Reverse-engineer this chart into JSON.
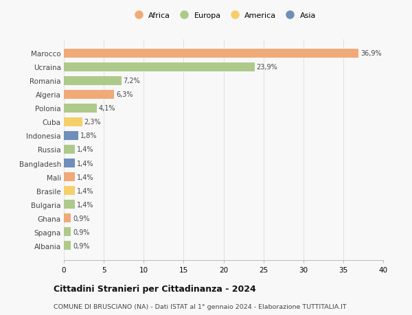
{
  "countries": [
    "Marocco",
    "Ucraina",
    "Romania",
    "Algeria",
    "Polonia",
    "Cuba",
    "Indonesia",
    "Russia",
    "Bangladesh",
    "Mali",
    "Brasile",
    "Bulgaria",
    "Ghana",
    "Spagna",
    "Albania"
  ],
  "values": [
    36.9,
    23.9,
    7.2,
    6.3,
    4.1,
    2.3,
    1.8,
    1.4,
    1.4,
    1.4,
    1.4,
    1.4,
    0.9,
    0.9,
    0.9
  ],
  "labels": [
    "36,9%",
    "23,9%",
    "7,2%",
    "6,3%",
    "4,1%",
    "2,3%",
    "1,8%",
    "1,4%",
    "1,4%",
    "1,4%",
    "1,4%",
    "1,4%",
    "0,9%",
    "0,9%",
    "0,9%"
  ],
  "continents": [
    "Africa",
    "Europa",
    "Europa",
    "Africa",
    "Europa",
    "America",
    "Asia",
    "Europa",
    "Asia",
    "Africa",
    "America",
    "Europa",
    "Africa",
    "Europa",
    "Europa"
  ],
  "colors": {
    "Africa": "#F0AA78",
    "Europa": "#AECA8A",
    "America": "#F5D06A",
    "Asia": "#6E8FBA"
  },
  "legend_order": [
    "Africa",
    "Europa",
    "America",
    "Asia"
  ],
  "legend_colors": [
    "#F0AA78",
    "#AECA8A",
    "#F5D06A",
    "#6E8FBA"
  ],
  "title": "Cittadini Stranieri per Cittadinanza - 2024",
  "subtitle": "COMUNE DI BRUSCIANO (NA) - Dati ISTAT al 1° gennaio 2024 - Elaborazione TUTTITALIA.IT",
  "xlim": [
    0,
    40
  ],
  "xticks": [
    0,
    5,
    10,
    15,
    20,
    25,
    30,
    35,
    40
  ],
  "bg_color": "#f8f8f8",
  "grid_color": "#dddddd"
}
